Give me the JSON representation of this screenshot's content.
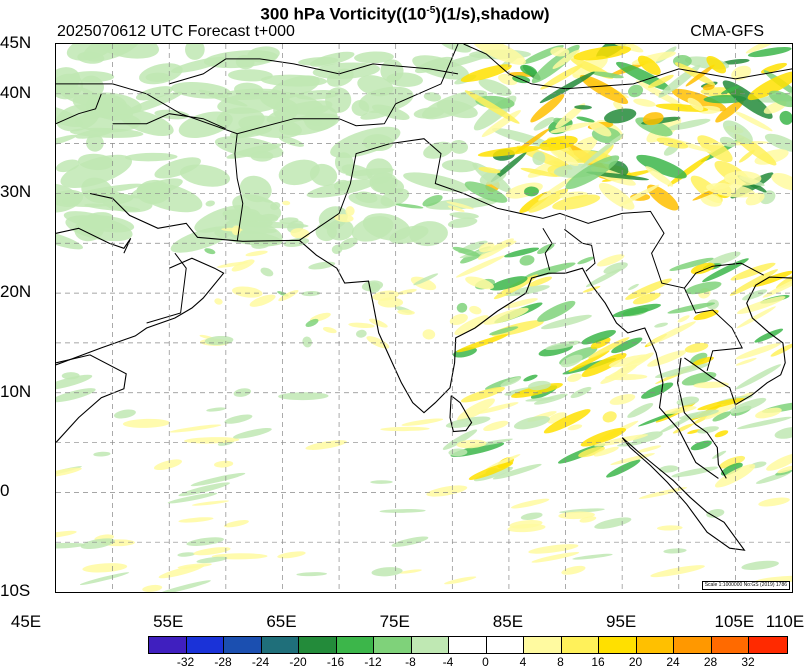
{
  "title": {
    "main": "300 hPa Vorticity((10",
    "exponent": "-5",
    "rest": ")(1/s),shadow)"
  },
  "subtitle": {
    "run": "2025070612 UTC Forecast t+000",
    "model": "CMA-GFS"
  },
  "map": {
    "lon_range": [
      45,
      110
    ],
    "lat_range": [
      -10,
      45
    ],
    "lat_labels": [
      "45N",
      "40N",
      "30N",
      "20N",
      "10N",
      "0",
      "10S"
    ],
    "lat_values": [
      45,
      40,
      30,
      20,
      10,
      0,
      -10
    ],
    "lon_labels": [
      "45E",
      "55E",
      "65E",
      "75E",
      "85E",
      "95E",
      "105E",
      "110E"
    ],
    "lon_values": [
      45,
      55,
      65,
      75,
      85,
      95,
      105,
      110
    ],
    "scale_note": "Scale 1:1000000 No:GS (2019) 1786"
  },
  "colorbar": {
    "colors": [
      "#3f1fbf",
      "#1a32d8",
      "#1b4fb0",
      "#1f6f7a",
      "#238b3a",
      "#3cb64a",
      "#7fd27a",
      "#bfe8b3",
      "#ffffff",
      "#ffffff",
      "#fffaa0",
      "#fff15a",
      "#ffe000",
      "#ffc000",
      "#ff9800",
      "#ff6a00",
      "#ff2a00"
    ],
    "ticks": [
      "-32",
      "-28",
      "-24",
      "-20",
      "-16",
      "-12",
      "-8",
      "-4",
      "0",
      "4",
      "8",
      "16",
      "20",
      "24",
      "28",
      "32"
    ]
  }
}
